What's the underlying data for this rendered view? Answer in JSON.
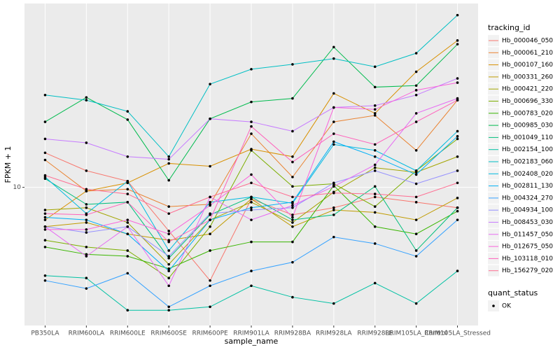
{
  "chart_data": {
    "type": "line",
    "x_label": "sample_name",
    "y_label": "FPKM + 1",
    "legend_title": "tracking_id",
    "shape_legend_title": "quant_status",
    "shape_legend_label": "OK",
    "point_color": "#000000",
    "log_y": true,
    "grid": true,
    "legend_position": "right",
    "ylim": [
      2.2,
      75
    ],
    "yticks": [
      10
    ],
    "categories": [
      "PB350LA",
      "RRIM600LA",
      "RRIM600LE",
      "RRIM600SE",
      "RRIM600PE",
      "RRIM901LA",
      "RRIM928BA",
      "RRIM928LA",
      "RRIM928LE",
      "RRIM105LA_Control",
      "RRIM105LA_Stressed"
    ],
    "series": [
      {
        "name": "Hb_000046_050",
        "color": "#F8766D",
        "values": [
          14.6,
          12.0,
          10.7,
          6.2,
          3.6,
          8.8,
          7.4,
          8.0,
          9.0,
          8.5,
          8.0
        ]
      },
      {
        "name": "Hb_000061_210",
        "color": "#EA8331",
        "values": [
          13.5,
          9.6,
          9.8,
          8.1,
          8.3,
          18.0,
          11.2,
          20.5,
          22.0,
          15.0,
          26.0
        ]
      },
      {
        "name": "Hb_000107_160",
        "color": "#D89000",
        "values": [
          7.0,
          9.6,
          10.5,
          13.0,
          12.6,
          15.2,
          14.0,
          28.0,
          22.5,
          35.5,
          50.0
        ]
      },
      {
        "name": "Hb_000331_260",
        "color": "#C09B00",
        "values": [
          6.5,
          6.8,
          6.0,
          5.6,
          6.0,
          8.8,
          6.5,
          7.8,
          7.6,
          7.0,
          8.9
        ]
      },
      {
        "name": "Hb_000421_220",
        "color": "#A3A500",
        "values": [
          7.8,
          8.0,
          6.8,
          4.3,
          7.0,
          8.5,
          6.8,
          9.5,
          12.4,
          11.8,
          14.0
        ]
      },
      {
        "name": "Hb_000696_330",
        "color": "#7CAE00",
        "values": [
          5.6,
          5.2,
          5.0,
          3.7,
          6.5,
          15.0,
          10.1,
          10.4,
          8.1,
          12.0,
          17.0
        ]
      },
      {
        "name": "Hb_000783_020",
        "color": "#39B600",
        "values": [
          5.2,
          4.8,
          4.7,
          4.1,
          5.0,
          5.5,
          5.5,
          10.2,
          6.5,
          6.0,
          7.7
        ]
      },
      {
        "name": "Hb_000985_030",
        "color": "#00BB4E",
        "values": [
          20.5,
          26.8,
          21.0,
          10.8,
          21.2,
          25.5,
          26.5,
          46.5,
          30.0,
          30.5,
          48.0
        ]
      },
      {
        "name": "Hb_001049_110",
        "color": "#00BF7D",
        "values": [
          11.0,
          8.3,
          8.5,
          4.6,
          7.4,
          9.0,
          7.0,
          7.4,
          10.1,
          5.0,
          8.0
        ]
      },
      {
        "name": "Hb_002154_100",
        "color": "#00C1A3",
        "values": [
          3.8,
          3.7,
          2.6,
          2.6,
          2.7,
          3.4,
          3.0,
          2.8,
          3.5,
          2.8,
          4.0
        ]
      },
      {
        "name": "Hb_002183_060",
        "color": "#00BFC4",
        "values": [
          27.5,
          26.0,
          23.0,
          14.0,
          31.0,
          36.5,
          38.5,
          41.0,
          37.5,
          43.5,
          66.0
        ]
      },
      {
        "name": "Hb_002408_020",
        "color": "#00BAE0",
        "values": [
          11.2,
          7.5,
          10.7,
          5.0,
          8.5,
          9.0,
          8.4,
          16.0,
          15.0,
          12.0,
          18.5
        ]
      },
      {
        "name": "Hb_002811_130",
        "color": "#00B0F6",
        "values": [
          7.2,
          7.0,
          6.0,
          4.0,
          7.0,
          8.0,
          8.5,
          16.5,
          14.0,
          11.5,
          17.5
        ]
      },
      {
        "name": "Hb_004324_270",
        "color": "#35A2FF",
        "values": [
          3.6,
          3.3,
          3.9,
          2.7,
          3.4,
          4.0,
          4.4,
          5.8,
          5.4,
          4.7,
          7.0
        ]
      },
      {
        "name": "Hb_004934_100",
        "color": "#9590FF",
        "values": [
          6.5,
          6.1,
          6.5,
          4.7,
          7.5,
          7.8,
          8.0,
          10.5,
          12.0,
          10.4,
          12.0
        ]
      },
      {
        "name": "Hb_008453_030",
        "color": "#C77CFF",
        "values": [
          17.0,
          16.3,
          14.0,
          13.6,
          21.2,
          20.5,
          18.5,
          24.0,
          24.5,
          27.5,
          33.0
        ]
      },
      {
        "name": "Hb_011457_050",
        "color": "#E76BF3",
        "values": [
          6.5,
          4.7,
          6.5,
          3.4,
          9.0,
          7.0,
          8.2,
          10.1,
          12.8,
          22.5,
          26.5
        ]
      },
      {
        "name": "Hb_012675_050",
        "color": "#FA62DB",
        "values": [
          6.3,
          6.3,
          7.0,
          6.0,
          8.2,
          11.5,
          7.2,
          24.0,
          23.5,
          29.0,
          31.5
        ]
      },
      {
        "name": "Hb_103118_010",
        "color": "#FF62BC",
        "values": [
          7.5,
          7.4,
          8.5,
          5.5,
          7.0,
          19.5,
          13.2,
          18.0,
          16.0,
          20.5,
          26.0
        ]
      },
      {
        "name": "Hb_156279_020",
        "color": "#FF6C91",
        "values": [
          11.4,
          9.8,
          9.3,
          7.5,
          9.0,
          10.5,
          9.0,
          9.4,
          9.3,
          9.0,
          10.5
        ]
      }
    ]
  }
}
